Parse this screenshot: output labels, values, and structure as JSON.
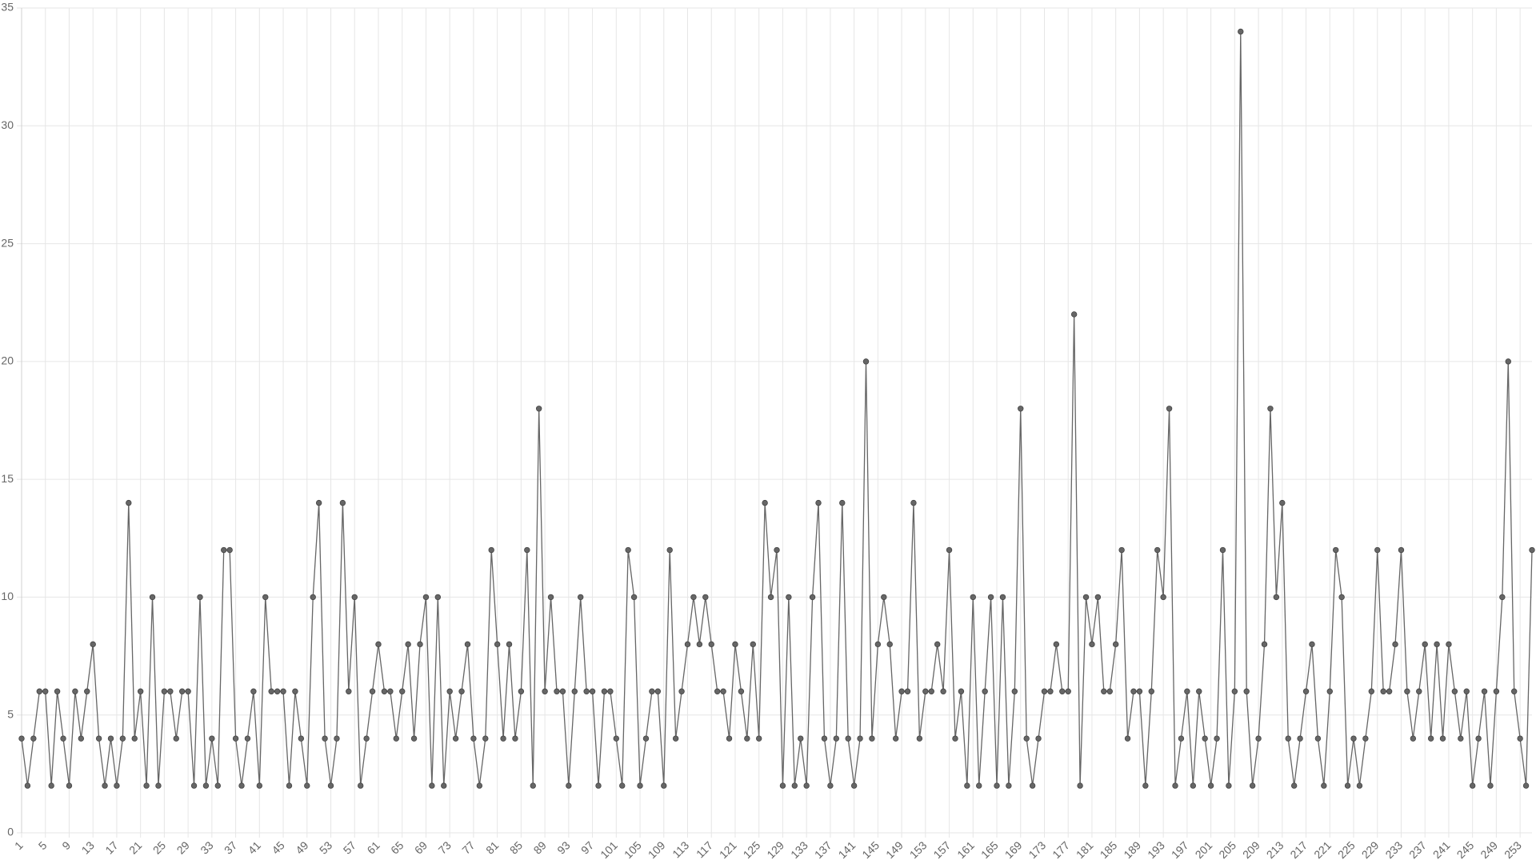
{
  "chart_data": {
    "type": "line",
    "x": [
      1,
      2,
      3,
      4,
      5,
      6,
      7,
      8,
      9,
      10,
      11,
      12,
      13,
      14,
      15,
      16,
      17,
      18,
      19,
      20,
      21,
      22,
      23,
      24,
      25,
      26,
      27,
      28,
      29,
      30,
      31,
      32,
      33,
      34,
      35,
      36,
      37,
      38,
      39,
      40,
      41,
      42,
      43,
      44,
      45,
      46,
      47,
      48,
      49,
      50,
      51,
      52,
      53,
      54,
      55,
      56,
      57,
      58,
      59,
      60,
      61,
      62,
      63,
      64,
      65,
      66,
      67,
      68,
      69,
      70,
      71,
      72,
      73,
      74,
      75,
      76,
      77,
      78,
      79,
      80,
      81,
      82,
      83,
      84,
      85,
      86,
      87,
      88,
      89,
      90,
      91,
      92,
      93,
      94,
      95,
      96,
      97,
      98,
      99,
      100,
      101,
      102,
      103,
      104,
      105,
      106,
      107,
      108,
      109,
      110,
      111,
      112,
      113,
      114,
      115,
      116,
      117,
      118,
      119,
      120,
      121,
      122,
      123,
      124,
      125,
      126,
      127,
      128,
      129,
      130,
      131,
      132,
      133,
      134,
      135,
      136,
      137,
      138,
      139,
      140,
      141,
      142,
      143,
      144,
      145,
      146,
      147,
      148,
      149,
      150,
      151,
      152,
      153,
      154,
      155,
      156,
      157,
      158,
      159,
      160,
      161,
      162,
      163,
      164,
      165,
      166,
      167,
      168,
      169,
      170,
      171,
      172,
      173,
      174,
      175,
      176,
      177,
      178,
      179,
      180,
      181,
      182,
      183,
      184,
      185,
      186,
      187,
      188,
      189,
      190,
      191,
      192,
      193,
      194,
      195,
      196,
      197,
      198,
      199,
      200,
      201,
      202,
      203,
      204,
      205,
      206,
      207,
      208,
      209,
      210,
      211,
      212,
      213,
      214,
      215,
      216,
      217,
      218,
      219,
      220,
      221,
      222,
      223,
      224,
      225,
      226,
      227,
      228,
      229,
      230,
      231,
      232,
      233,
      234,
      235,
      236,
      237,
      238,
      239,
      240,
      241,
      242,
      243,
      244,
      245,
      246,
      247,
      248,
      249,
      250,
      251,
      252,
      253,
      254,
      255
    ],
    "values": [
      4,
      2,
      4,
      6,
      6,
      2,
      6,
      4,
      2,
      6,
      4,
      6,
      8,
      4,
      2,
      4,
      2,
      4,
      14,
      4,
      6,
      2,
      10,
      2,
      6,
      6,
      4,
      6,
      6,
      2,
      10,
      2,
      4,
      2,
      12,
      12,
      4,
      2,
      4,
      6,
      2,
      10,
      6,
      6,
      6,
      2,
      6,
      4,
      2,
      10,
      14,
      4,
      2,
      4,
      14,
      6,
      10,
      2,
      4,
      6,
      8,
      6,
      6,
      4,
      6,
      8,
      4,
      8,
      10,
      2,
      10,
      2,
      6,
      4,
      6,
      8,
      4,
      2,
      4,
      12,
      8,
      4,
      8,
      4,
      6,
      12,
      2,
      18,
      6,
      10,
      6,
      6,
      2,
      6,
      10,
      6,
      6,
      2,
      6,
      6,
      4,
      2,
      12,
      10,
      2,
      4,
      6,
      6,
      2,
      12,
      4,
      6,
      8,
      10,
      8,
      10,
      8,
      6,
      6,
      4,
      8,
      6,
      4,
      8,
      4,
      14,
      10,
      12,
      2,
      10,
      2,
      4,
      2,
      10,
      14,
      4,
      2,
      4,
      14,
      4,
      2,
      4,
      20,
      4,
      8,
      10,
      8,
      4,
      6,
      6,
      14,
      4,
      6,
      6,
      8,
      6,
      12,
      4,
      6,
      2,
      10,
      2,
      6,
      10,
      2,
      10,
      2,
      6,
      18,
      4,
      2,
      4,
      6,
      6,
      8,
      6,
      6,
      22,
      2,
      10,
      8,
      10,
      6,
      6,
      8,
      12,
      4,
      6,
      6,
      2,
      6,
      12,
      10,
      18,
      2,
      4,
      6,
      2,
      6,
      4,
      2,
      4,
      12,
      2,
      6,
      34,
      6,
      2,
      4,
      8,
      18,
      10,
      14,
      4,
      2,
      4,
      6,
      8,
      4,
      2,
      6,
      12,
      10,
      2,
      4,
      2,
      4,
      6,
      12,
      6,
      6,
      8,
      12,
      6,
      4,
      6,
      8,
      4,
      8,
      4,
      8,
      6,
      4,
      6,
      2,
      4,
      6,
      2,
      6,
      10,
      20,
      6,
      4,
      2,
      12
    ],
    "color": "#666666",
    "xlim": [
      1,
      255
    ],
    "xticks": [
      1,
      5,
      9,
      13,
      17,
      21,
      25,
      29,
      33,
      37,
      41,
      45,
      49,
      53,
      57,
      61,
      65,
      69,
      73,
      77,
      81,
      85,
      89,
      93,
      97,
      101,
      105,
      109,
      113,
      117,
      121,
      125,
      129,
      133,
      137,
      141,
      145,
      149,
      153,
      157,
      161,
      165,
      169,
      173,
      177,
      181,
      185,
      189,
      193,
      197,
      201,
      205,
      209,
      213,
      217,
      221,
      225,
      229,
      233,
      237,
      241,
      245,
      249,
      253
    ],
    "ylim": [
      0,
      35
    ],
    "yticks": [
      0,
      5,
      10,
      15,
      20,
      25,
      30,
      35
    ],
    "grid": true
  }
}
